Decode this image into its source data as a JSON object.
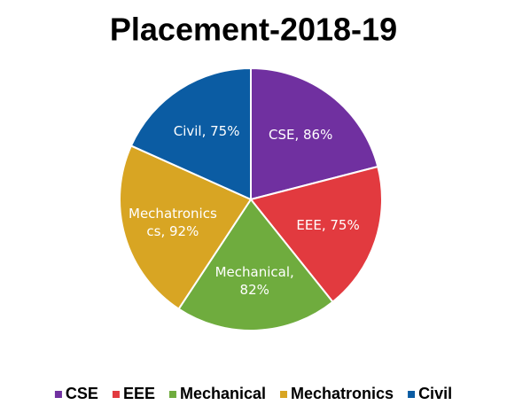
{
  "chart_data": {
    "type": "pie",
    "title": "Placement-2018-19",
    "categories": [
      "CSE",
      "EEE",
      "Mechanical",
      "Mechatronics",
      "Civil"
    ],
    "values": [
      86,
      75,
      82,
      92,
      75
    ],
    "value_labels": [
      "CSE, 86%",
      "EEE, 75%",
      "Mechanical, 82%",
      "Mechatronics cs, 92%",
      "Civil, 75%"
    ],
    "colors": [
      "#7030a0",
      "#e23a3f",
      "#6fac3e",
      "#d8a523",
      "#0b5ca3"
    ],
    "legend": "bottom"
  }
}
